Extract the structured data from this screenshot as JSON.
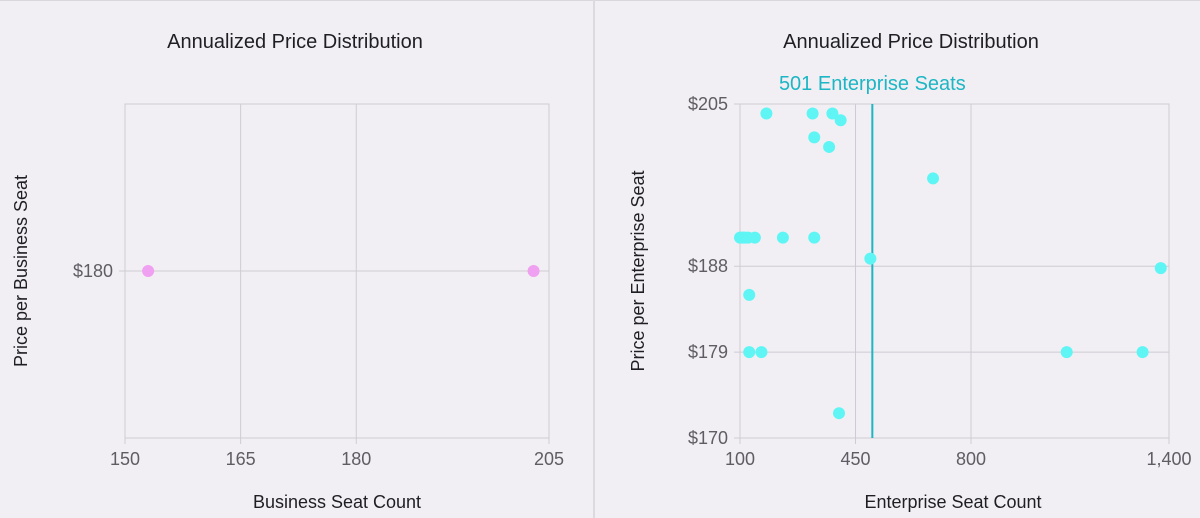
{
  "charts": [
    {
      "id": "business",
      "chart_data": {
        "type": "scatter",
        "title": "Annualized Price Distribution",
        "xlabel": "Business Seat Count",
        "ylabel": "Price per Business Seat",
        "xlim": [
          150,
          205
        ],
        "ylim": [
          170,
          190
        ],
        "x_ticks": [
          150,
          165,
          180,
          205
        ],
        "x_tick_labels": [
          "150",
          "165",
          "180",
          "205"
        ],
        "y_ticks": [
          180
        ],
        "y_tick_labels": [
          "$180"
        ],
        "point_color": "#f0a0f0",
        "points": [
          {
            "x": 153,
            "y": 180
          },
          {
            "x": 203,
            "y": 180
          }
        ]
      }
    },
    {
      "id": "enterprise",
      "chart_data": {
        "type": "scatter",
        "title": "Annualized Price Distribution",
        "xlabel": "Enterprise Seat Count",
        "ylabel": "Price per Enterprise Seat",
        "xlim": [
          100,
          1400
        ],
        "ylim": [
          170,
          205
        ],
        "x_ticks": [
          100,
          450,
          800,
          1400
        ],
        "x_tick_labels": [
          "100",
          "450",
          "800",
          "1,400"
        ],
        "y_ticks": [
          170,
          179,
          188,
          205
        ],
        "y_tick_labels": [
          "$170",
          "$179",
          "$188",
          "$205"
        ],
        "point_color": "#5ff5f5",
        "marker": {
          "x": 501,
          "label": "501 Enterprise Seats",
          "color": "#1cb6c4"
        },
        "points": [
          {
            "x": 100,
            "y": 191.0
          },
          {
            "x": 105,
            "y": 191.0
          },
          {
            "x": 110,
            "y": 191.0
          },
          {
            "x": 115,
            "y": 191.0
          },
          {
            "x": 125,
            "y": 191.0
          },
          {
            "x": 145,
            "y": 191.0
          },
          {
            "x": 230,
            "y": 191.0
          },
          {
            "x": 325,
            "y": 191.0
          },
          {
            "x": 180,
            "y": 204.0
          },
          {
            "x": 320,
            "y": 204.0
          },
          {
            "x": 380,
            "y": 204.0
          },
          {
            "x": 405,
            "y": 203.3
          },
          {
            "x": 325,
            "y": 201.5
          },
          {
            "x": 370,
            "y": 200.5
          },
          {
            "x": 685,
            "y": 197.2
          },
          {
            "x": 495,
            "y": 188.8
          },
          {
            "x": 1375,
            "y": 187.8
          },
          {
            "x": 128,
            "y": 185.0
          },
          {
            "x": 128,
            "y": 179.0
          },
          {
            "x": 165,
            "y": 179.0
          },
          {
            "x": 1090,
            "y": 179.0
          },
          {
            "x": 1320,
            "y": 179.0
          },
          {
            "x": 400,
            "y": 172.6
          }
        ]
      }
    }
  ]
}
